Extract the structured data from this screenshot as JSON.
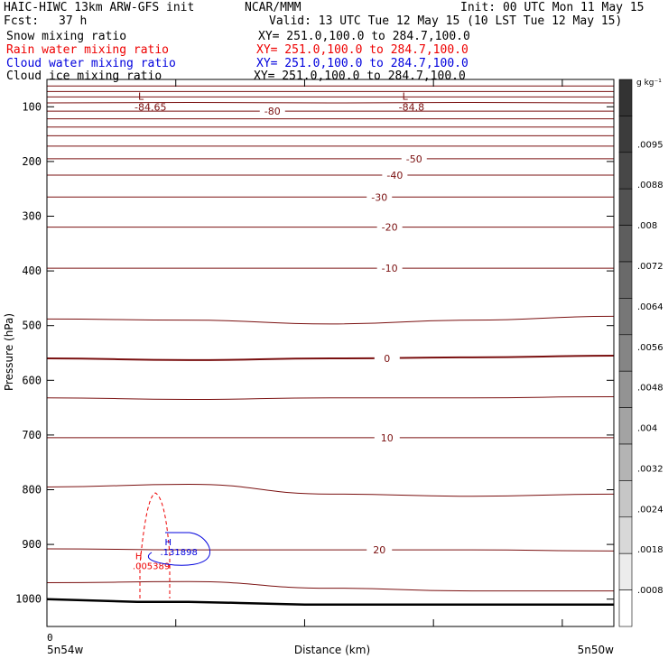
{
  "header": {
    "run": "HAIC-HIWC 13km ARW-GFS init",
    "center": "NCAR/MMM",
    "init": "Init: 00 UTC Mon 11 May 15",
    "fcst_label": "Fcst:",
    "fcst_value": "37 h",
    "valid": "Valid: 13 UTC Tue 12 May 15 (10 LST Tue 12 May 15)"
  },
  "fields": [
    {
      "name": "Snow mixing ratio",
      "xy": "XY= 251.0,100.0 to 284.7,100.0",
      "color": "#000000"
    },
    {
      "name": "Rain water mixing ratio",
      "xy": "XY= 251.0,100.0 to 284.7,100.0",
      "color": "#ee0000"
    },
    {
      "name": "Cloud water mixing ratio",
      "xy": "XY= 251.0,100.0 to 284.7,100.0",
      "color": "#0000dd"
    },
    {
      "name": "Cloud ice mixing ratio",
      "xy": "XY= 251.0,100.0 to 284.7,100.0",
      "color": "#000000"
    }
  ],
  "chart_data": {
    "type": "line",
    "xlabel": "Distance (km)",
    "ylabel": "Pressure (hPa)",
    "xlim": [
      0,
      440
    ],
    "ylim": [
      1050,
      50
    ],
    "x_ticks": [
      0,
      100,
      200,
      300,
      400
    ],
    "x_tick_labels": [
      "0"
    ],
    "x_endpoints": [
      "5n54w",
      "5n50w"
    ],
    "y_ticks": [
      100,
      200,
      300,
      400,
      500,
      600,
      700,
      800,
      900,
      1000
    ],
    "y_tick_labels": [
      "100",
      "200",
      "300",
      "400",
      "500",
      "600",
      "700",
      "800",
      "900",
      "1000"
    ],
    "isotherm_color": "#7a1010",
    "terrain_color": "#000000",
    "isotherms": [
      {
        "p": [
          62,
          62,
          62,
          62,
          62
        ],
        "label": ""
      },
      {
        "p": [
          72,
          72,
          72,
          72,
          72
        ],
        "label": ""
      },
      {
        "p": [
          82,
          82,
          82,
          82,
          82
        ],
        "label": ""
      },
      {
        "p": [
          93,
          92,
          93,
          92,
          93
        ],
        "label": ""
      },
      {
        "p": [
          108,
          108,
          108,
          108,
          108
        ],
        "label": "-80",
        "label_x": 175
      },
      {
        "p": [
          122,
          122,
          122,
          122,
          122
        ],
        "label": ""
      },
      {
        "p": [
          137,
          137,
          137,
          137,
          137
        ],
        "label": ""
      },
      {
        "p": [
          153,
          153,
          153,
          153,
          153
        ],
        "label": ""
      },
      {
        "p": [
          172,
          172,
          172,
          172,
          172
        ],
        "label": ""
      },
      {
        "p": [
          195,
          195,
          195,
          195,
          195
        ],
        "label": "-50",
        "label_x": 285
      },
      {
        "p": [
          225,
          225,
          225,
          225,
          225
        ],
        "label": "-40",
        "label_x": 270
      },
      {
        "p": [
          265,
          265,
          265,
          265,
          265
        ],
        "label": "-30",
        "label_x": 258
      },
      {
        "p": [
          320,
          320,
          320,
          320,
          320
        ],
        "label": "-20",
        "label_x": 266
      },
      {
        "p": [
          395,
          395,
          395,
          395,
          395
        ],
        "label": "-10",
        "label_x": 266
      },
      {
        "p": [
          488,
          490,
          497,
          490,
          483
        ],
        "label": ""
      },
      {
        "p": [
          560,
          563,
          560,
          558,
          555
        ],
        "label": "0",
        "label_x": 264
      },
      {
        "p": [
          632,
          635,
          632,
          632,
          630
        ],
        "label": ""
      },
      {
        "p": [
          705,
          705,
          705,
          705,
          705
        ],
        "label": "10",
        "label_x": 264
      },
      {
        "p": [
          795,
          790,
          808,
          812,
          808
        ],
        "label": ""
      },
      {
        "p": [
          908,
          910,
          910,
          910,
          912
        ],
        "label": "20",
        "label_x": 258
      },
      {
        "p": [
          970,
          968,
          980,
          985,
          985
        ],
        "label": ""
      }
    ],
    "terrain": {
      "x": [
        0,
        70,
        110,
        150,
        200,
        260,
        360,
        440
      ],
      "p": [
        1000,
        1005,
        1005,
        1007,
        1010,
        1010,
        1010,
        1010
      ]
    },
    "low_labels": [
      {
        "symbol": "L",
        "value": "-84.65",
        "x": 75,
        "p": 100
      },
      {
        "symbol": "L",
        "value": "-84.8",
        "x": 280,
        "p": 100
      }
    ],
    "rain_max": {
      "symbol": "H",
      "value": ".005389",
      "x": 70,
      "p": 940
    },
    "cloud_water_max": {
      "symbol": "H",
      "value": ".131898",
      "x": 90,
      "p": 918
    },
    "colorbar": {
      "unit": "g kg⁻¹",
      "labels": [
        ".0095",
        ".0088",
        ".008",
        ".0072",
        ".0064",
        ".0056",
        ".0048",
        ".004",
        ".0032",
        ".0024",
        ".0018",
        ".0008"
      ],
      "colors": [
        "#333333",
        "#3c3c3c",
        "#474747",
        "#525252",
        "#5e5e5e",
        "#6a6a6a",
        "#777777",
        "#858585",
        "#939393",
        "#a3a3a3",
        "#b4b4b4",
        "#c6c6c6",
        "#d8d8d8",
        "#ececec",
        "#ffffff"
      ]
    }
  }
}
